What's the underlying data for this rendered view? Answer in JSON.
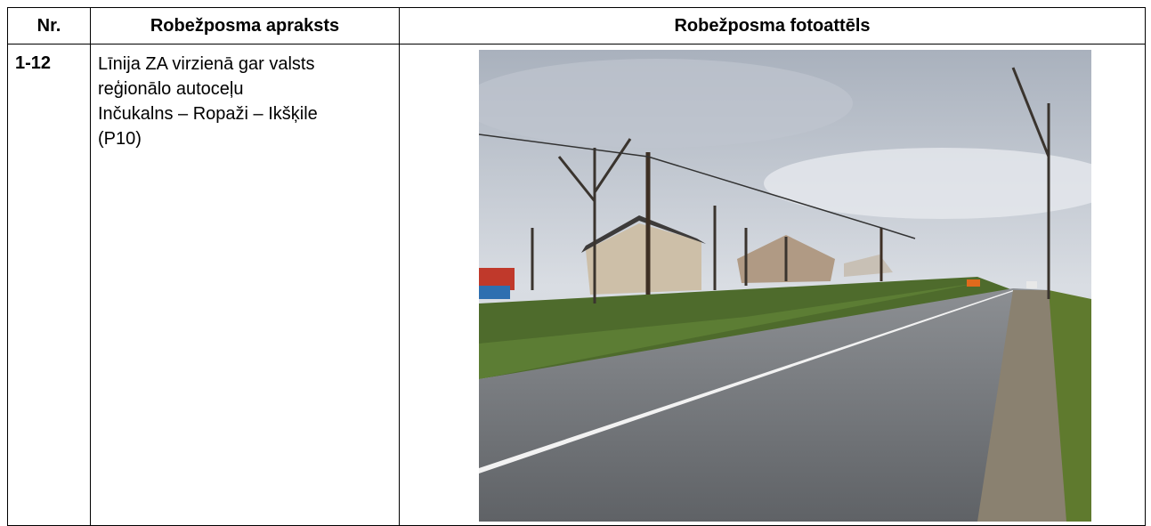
{
  "table": {
    "header": [
      "Nr.",
      "Robežposma apraksts",
      "Robežposma fotoattēls"
    ],
    "rows": [
      {
        "nr": "1-12",
        "description_lines": [
          "Līnija ZA virzienā gar valsts",
          "reģionālo autoceļu",
          "Inčukalns – Ropaži – Ikšķile",
          "(P10)"
        ]
      }
    ]
  }
}
